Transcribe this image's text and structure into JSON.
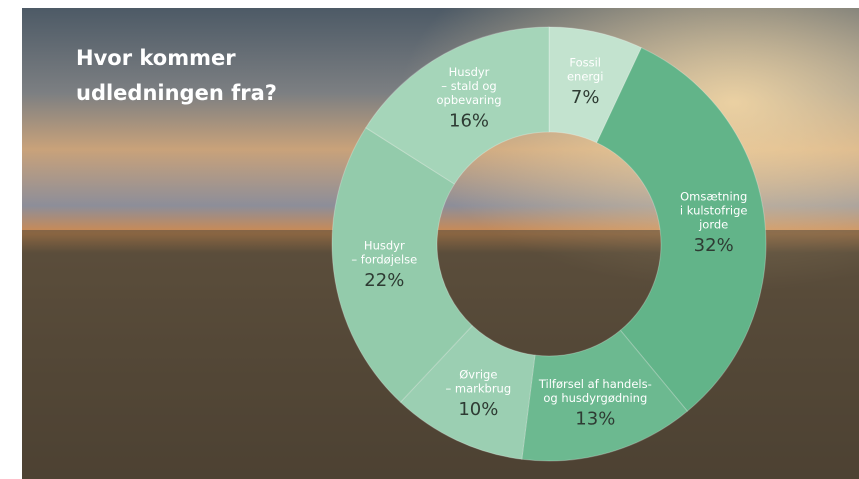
{
  "chart_data": {
    "type": "donut",
    "title": [
      "Hvor kommer",
      "udledningen fra?"
    ],
    "categories": [
      [
        "Fossil",
        "energi"
      ],
      [
        "Omsætning",
        "i kulstofrige",
        "jorde"
      ],
      [
        "Tilførsel af handels-",
        "og husdyrgødning"
      ],
      [
        "Øvrige",
        "– markbrug"
      ],
      [
        "Husdyr",
        "– fordøjelse"
      ],
      [
        "Husdyr",
        "– stald og",
        "opbevaring"
      ]
    ],
    "values": [
      7,
      32,
      13,
      10,
      22,
      16
    ],
    "value_labels": [
      "7%",
      "32%",
      "13%",
      "10%",
      "22%",
      "16%"
    ],
    "colors": [
      "#c3e3cf",
      "#62b489",
      "#6cb990",
      "#9bcfb2",
      "#93cbab",
      "#a5d5b9"
    ]
  }
}
